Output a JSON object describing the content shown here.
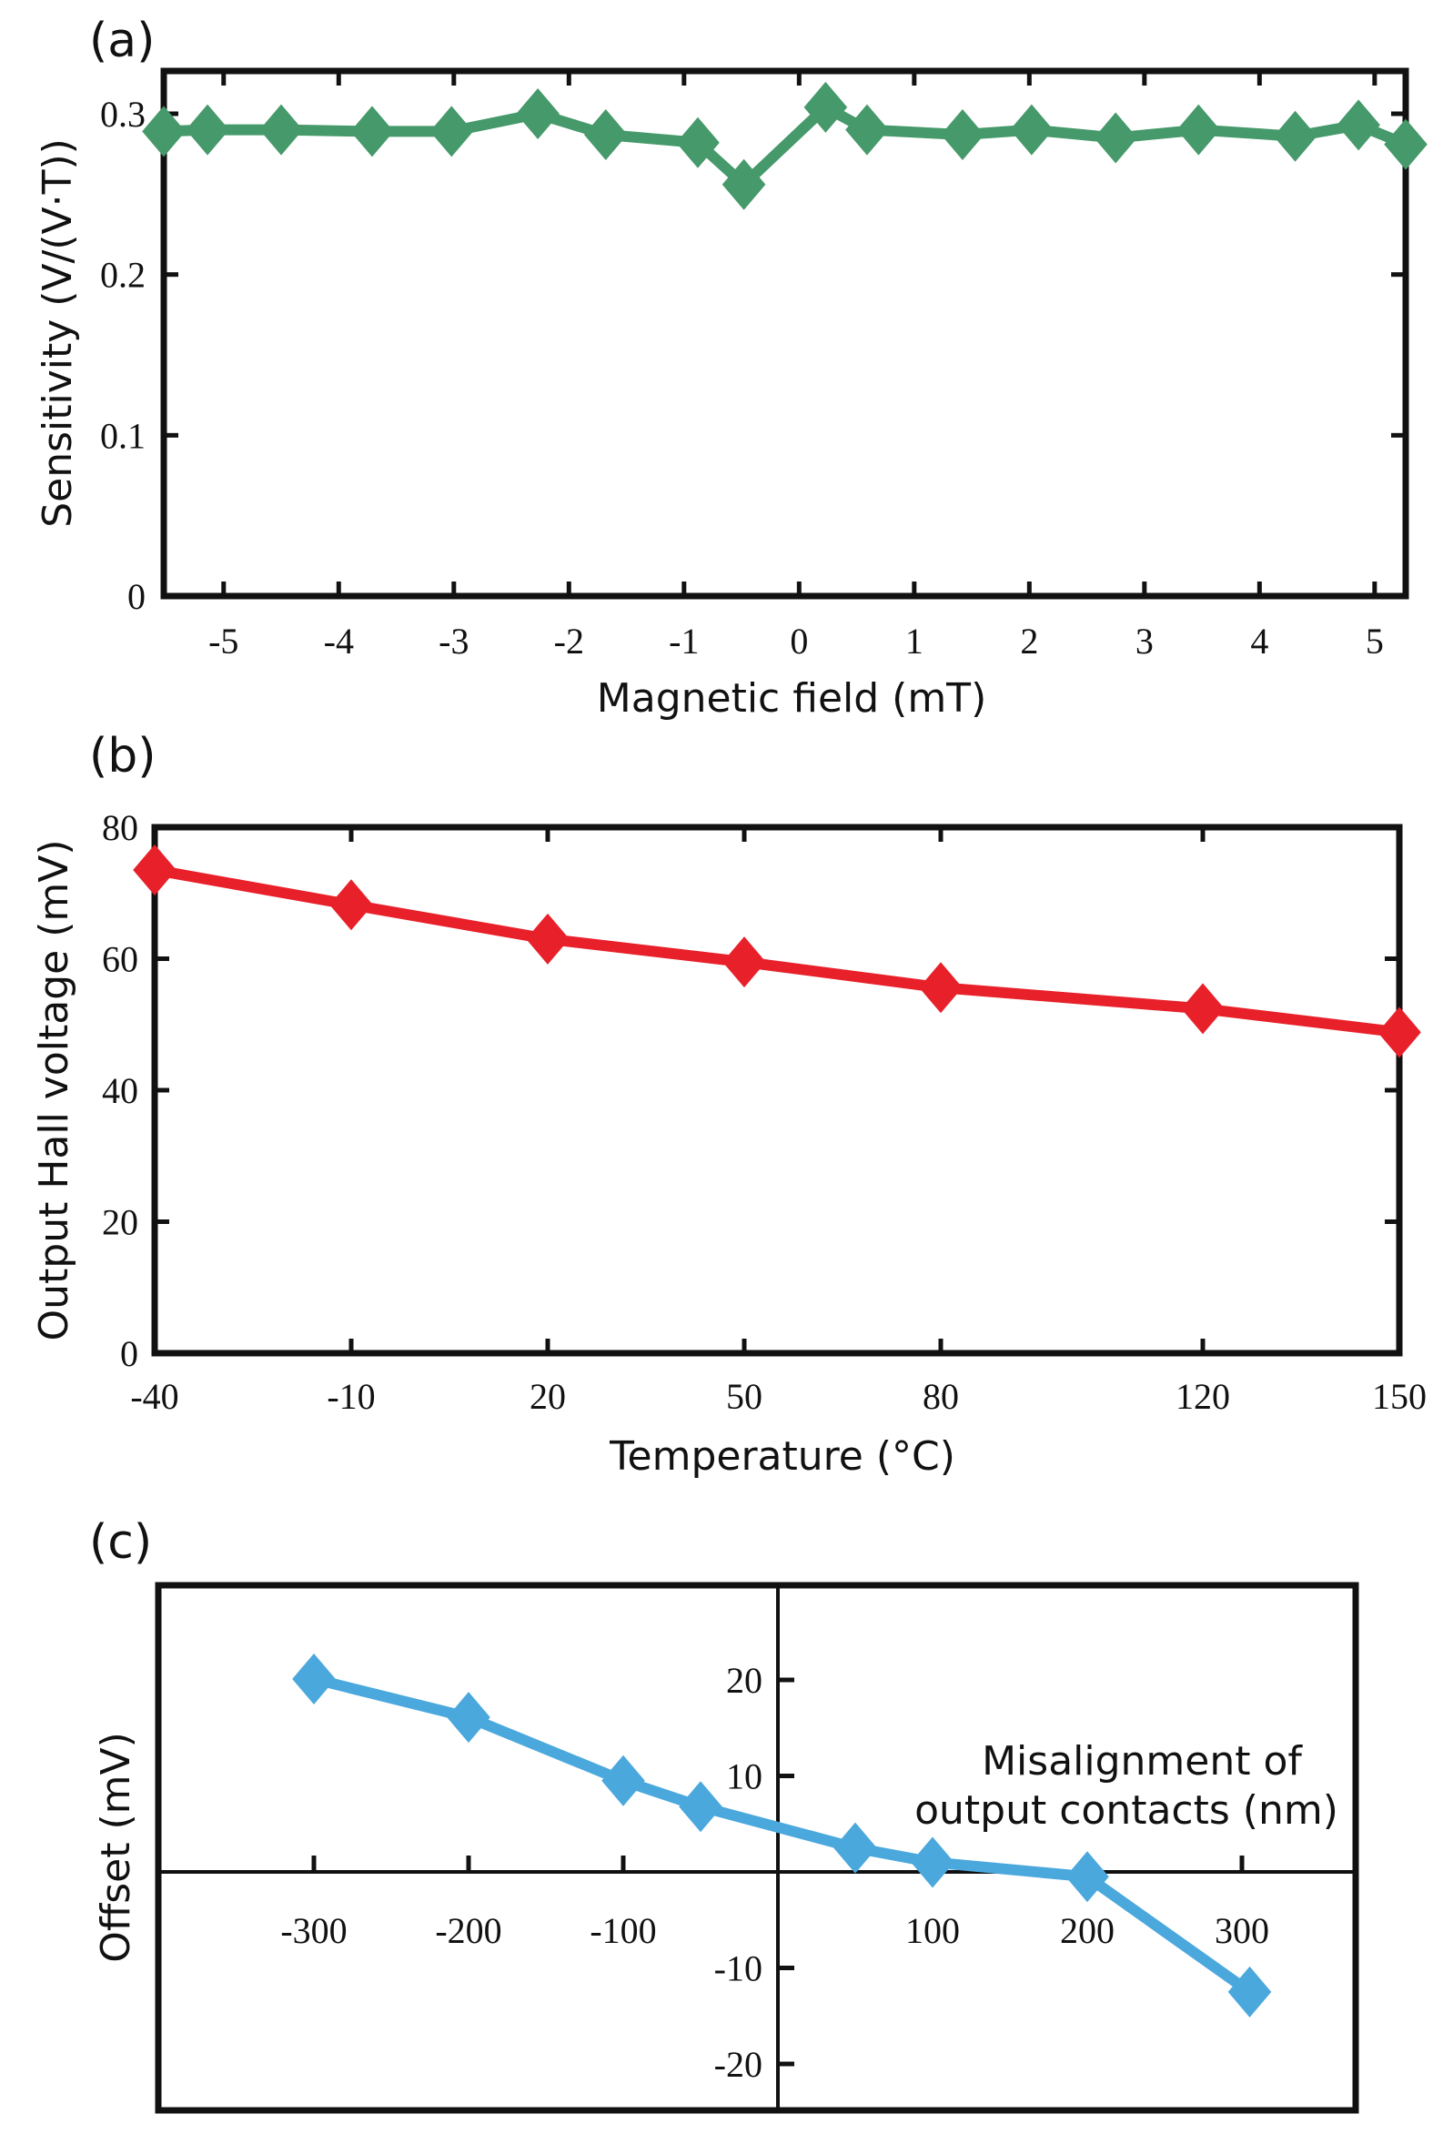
{
  "figure": {
    "panels": [
      "(a)",
      "(b)",
      "(c)"
    ]
  },
  "colors": {
    "series_a": "#45996a",
    "series_b": "#e8202a",
    "series_c": "#4ba8dd",
    "axis": "#111111"
  },
  "chart_data": [
    {
      "id": "a",
      "panel_label": "(a)",
      "type": "line",
      "title": "",
      "xlabel": "Magnetic field (mT)",
      "ylabel": "Sensitivity (V/(V·T))",
      "xlim": [
        -5.52,
        5.27
      ],
      "ylim": [
        0,
        0.3
      ],
      "x_ticks": [
        -5,
        -4,
        -3,
        -2,
        -1,
        0,
        1,
        2,
        3,
        4,
        5
      ],
      "x_tick_labels": [
        "-5",
        "-4",
        "-3",
        "-2",
        "-1",
        "0",
        "1",
        "2",
        "3",
        "4",
        "5"
      ],
      "y_ticks": [
        0,
        0.1,
        0.2,
        0.3
      ],
      "y_tick_labels": [
        "0",
        "0.1",
        "0.2",
        "0.3"
      ],
      "grid": false,
      "marker": "diamond",
      "series": [
        {
          "name": "Sensitivity",
          "color": "#45996a",
          "x": [
            -5.52,
            -5.14,
            -4.5,
            -3.71,
            -3.02,
            -2.27,
            -1.68,
            -0.88,
            -0.48,
            0.23,
            0.59,
            1.42,
            2.02,
            2.75,
            3.47,
            4.31,
            4.86,
            5.27
          ],
          "y": [
            0.289,
            0.29,
            0.29,
            0.289,
            0.289,
            0.3,
            0.287,
            0.282,
            0.256,
            0.304,
            0.29,
            0.287,
            0.29,
            0.285,
            0.29,
            0.286,
            0.293,
            0.281
          ]
        }
      ]
    },
    {
      "id": "b",
      "panel_label": "(b)",
      "type": "line",
      "title": "",
      "xlabel": "Temperature (°C)",
      "ylabel": "Output Hall voltage (mV)",
      "xlim": [
        -40,
        150
      ],
      "ylim": [
        0,
        80
      ],
      "x_ticks": [
        -40,
        -10,
        20,
        50,
        80,
        120,
        150
      ],
      "x_tick_labels": [
        "-40",
        "-10",
        "20",
        "50",
        "80",
        "120",
        "150"
      ],
      "y_ticks": [
        0,
        20,
        40,
        60,
        80
      ],
      "y_tick_labels": [
        "0",
        "20",
        "40",
        "60",
        "80"
      ],
      "grid": false,
      "marker": "diamond",
      "series": [
        {
          "name": "Output Hall voltage",
          "color": "#e8202a",
          "x": [
            -40,
            -10,
            20,
            50,
            80,
            120,
            150
          ],
          "y": [
            73.5,
            68.2,
            63.0,
            59.5,
            55.6,
            52.4,
            48.8
          ]
        }
      ]
    },
    {
      "id": "c",
      "panel_label": "(c)",
      "type": "line",
      "title": "",
      "xlabel": "Misalignment of output contacts (nm)",
      "ylabel": "Offset (mV)",
      "xlim": [
        -400,
        400
      ],
      "ylim": [
        -25,
        30
      ],
      "x_ticks": [
        -300,
        -200,
        -100,
        100,
        200,
        300
      ],
      "x_tick_labels": [
        "-300",
        "-200",
        "-100",
        "100",
        "200",
        "300"
      ],
      "y_ticks": [
        -20,
        -10,
        10,
        20
      ],
      "y_tick_labels": [
        "-20",
        "-10",
        "10",
        "20"
      ],
      "grid": false,
      "marker": "diamond",
      "annotation": [
        "Misalignment of",
        "output contacts (nm)"
      ],
      "series": [
        {
          "name": "Offset",
          "color": "#4ba8dd",
          "x": [
            -300,
            -200,
            -100,
            -50,
            50,
            100,
            200,
            305
          ],
          "y": [
            20.1,
            16.1,
            9.5,
            6.8,
            2.5,
            1.0,
            -0.5,
            -12.5
          ]
        }
      ]
    }
  ]
}
